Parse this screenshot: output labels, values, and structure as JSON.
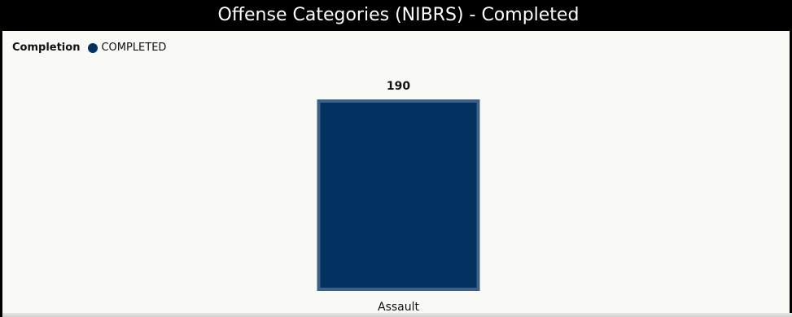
{
  "title": "Offense Categories (NIBRS) - Completed",
  "legend": {
    "title": "Completion",
    "items": [
      {
        "label": "COMPLETED",
        "color": "#033160"
      }
    ]
  },
  "colors": {
    "bar_fill": "#033160",
    "bar_border": "#3f5f86"
  },
  "chart_data": {
    "type": "bar",
    "categories": [
      "Assault"
    ],
    "series": [
      {
        "name": "COMPLETED",
        "values": [
          190
        ]
      }
    ],
    "data_labels": [
      "190"
    ],
    "xlabel": "",
    "ylabel": "",
    "ylim": [
      0,
      190
    ],
    "grid": false,
    "legend_position": "top-left"
  }
}
